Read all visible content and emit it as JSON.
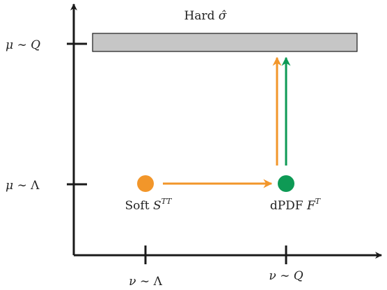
{
  "axis_labels": {
    "mu_Q": {
      "mu": "μ",
      "sim": " ∼ ",
      "var": "Q"
    },
    "mu_Lambda": {
      "mu": "μ",
      "sim": " ∼ ",
      "var": "Λ"
    },
    "nu_Lambda": {
      "nu": "ν",
      "sim": " ∼ ",
      "var": "Λ"
    },
    "nu_Q": {
      "nu": "ν",
      "sim": " ∼ ",
      "var": "Q"
    }
  },
  "hard_box": {
    "word": "Hard",
    "symbol": "σ̂"
  },
  "soft": {
    "word": "Soft",
    "symbol": "S",
    "superscript": "TT"
  },
  "dpdf": {
    "word": "dPDF",
    "symbol": "F",
    "superscript": "T"
  },
  "colors": {
    "axis": "#1a1a1a",
    "orange": "#f2962a",
    "green": "#0e9a55",
    "box_fill": "#c6c6c6",
    "box_stroke": "#1a1a1a"
  }
}
